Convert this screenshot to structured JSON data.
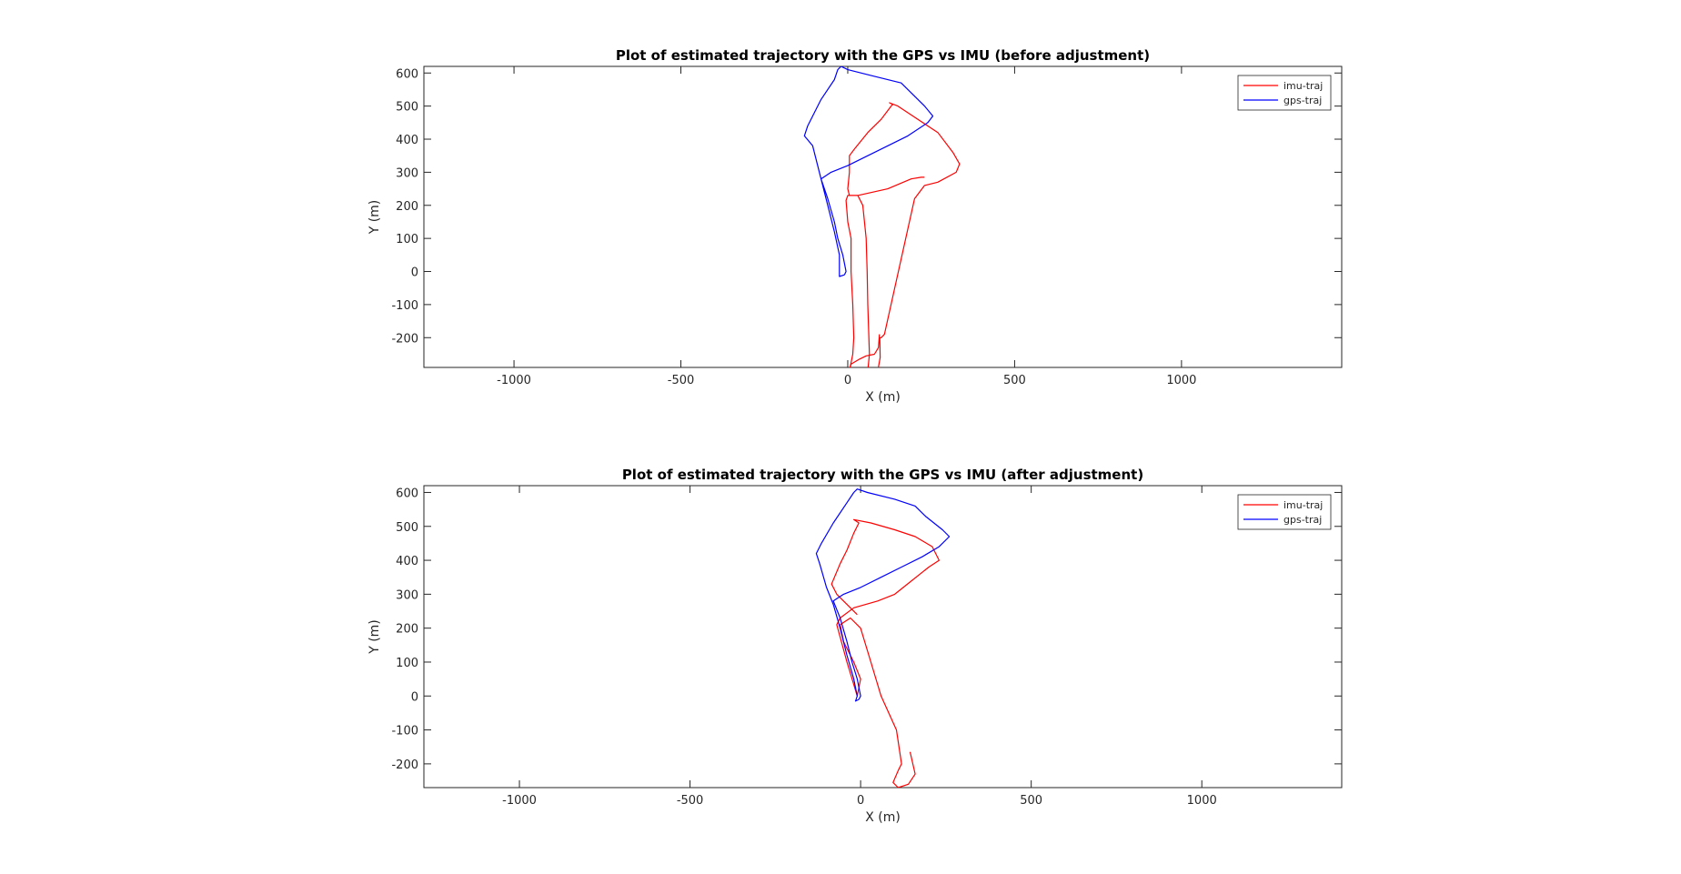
{
  "chart_data": [
    {
      "type": "line",
      "title": "Plot of estimated trajectory with the GPS vs IMU (before adjustment)",
      "xlabel": "X (m)",
      "ylabel": "Y (m)",
      "xlim": [
        -1270,
        1480
      ],
      "ylim": [
        -290,
        620
      ],
      "xticks": [
        -1000,
        -500,
        0,
        500,
        1000
      ],
      "yticks": [
        600,
        500,
        400,
        300,
        200,
        100,
        0,
        -100,
        -200
      ],
      "xtick_labels": [
        "-1000",
        "-500",
        "0",
        "500",
        "1000"
      ],
      "ytick_labels": [
        "600",
        "500",
        "400",
        "300",
        "200",
        "100",
        "0",
        "-100",
        "-200"
      ],
      "grid": false,
      "legend_position": "top-right",
      "series": [
        {
          "name": "imu-traj",
          "color": "#ff0000",
          "points": [
            [
              95,
              -190
            ],
            [
              92,
              -230
            ],
            [
              80,
              -250
            ],
            [
              55,
              -255
            ],
            [
              35,
              -265
            ],
            [
              10,
              -280
            ],
            [
              5,
              -300
            ],
            [
              20,
              -320
            ],
            [
              50,
              -325
            ],
            [
              60,
              -300
            ],
            [
              65,
              -250
            ],
            [
              60,
              -100
            ],
            [
              58,
              0
            ],
            [
              55,
              100
            ],
            [
              45,
              200
            ],
            [
              30,
              230
            ],
            [
              0,
              230
            ],
            [
              -5,
              215
            ],
            [
              0,
              150
            ],
            [
              10,
              100
            ],
            [
              10,
              0
            ],
            [
              15,
              -100
            ],
            [
              18,
              -200
            ],
            [
              15,
              -250
            ],
            [
              5,
              -300
            ],
            [
              50,
              -310
            ],
            [
              90,
              -300
            ],
            [
              97,
              -260
            ],
            [
              96,
              -200
            ],
            [
              100,
              -200
            ],
            [
              110,
              -190
            ],
            [
              200,
              220
            ],
            [
              230,
              260
            ],
            [
              270,
              270
            ],
            [
              325,
              300
            ],
            [
              335,
              325
            ],
            [
              315,
              360
            ],
            [
              270,
              420
            ],
            [
              240,
              440
            ],
            [
              150,
              500
            ],
            [
              125,
              510
            ],
            [
              135,
              505
            ],
            [
              130,
              500
            ],
            [
              100,
              460
            ],
            [
              60,
              420
            ],
            [
              20,
              370
            ],
            [
              5,
              350
            ],
            [
              5,
              300
            ],
            [
              0,
              250
            ],
            [
              5,
              230
            ],
            [
              30,
              230
            ],
            [
              120,
              250
            ],
            [
              190,
              280
            ],
            [
              220,
              285
            ],
            [
              230,
              285
            ]
          ]
        },
        {
          "name": "gps-traj",
          "color": "#0000ff",
          "points": [
            [
              -10,
              -10
            ],
            [
              -25,
              -15
            ],
            [
              -25,
              0
            ],
            [
              -25,
              50
            ],
            [
              -40,
              120
            ],
            [
              -60,
              200
            ],
            [
              -80,
              280
            ],
            [
              -105,
              380
            ],
            [
              -130,
              410
            ],
            [
              -120,
              440
            ],
            [
              -80,
              520
            ],
            [
              -40,
              580
            ],
            [
              -30,
              610
            ],
            [
              -20,
              620
            ],
            [
              0,
              610
            ],
            [
              80,
              590
            ],
            [
              160,
              570
            ],
            [
              190,
              540
            ],
            [
              230,
              500
            ],
            [
              255,
              470
            ],
            [
              240,
              450
            ],
            [
              180,
              410
            ],
            [
              120,
              380
            ],
            [
              60,
              350
            ],
            [
              0,
              320
            ],
            [
              -50,
              300
            ],
            [
              -80,
              280
            ],
            [
              -60,
              220
            ],
            [
              -40,
              150
            ],
            [
              -30,
              100
            ],
            [
              -15,
              50
            ],
            [
              -5,
              0
            ],
            [
              -10,
              -10
            ]
          ]
        }
      ]
    },
    {
      "type": "line",
      "title": "Plot of estimated trajectory with the GPS vs IMU (after adjustment)",
      "xlabel": "X (m)",
      "ylabel": "Y (m)",
      "xlim": [
        -1280,
        1410
      ],
      "ylim": [
        -270,
        620
      ],
      "xticks": [
        -1000,
        -500,
        0,
        500,
        1000
      ],
      "yticks": [
        600,
        500,
        400,
        300,
        200,
        100,
        0,
        -100,
        -200
      ],
      "xtick_labels": [
        "-1000",
        "-500",
        "0",
        "500",
        "1000"
      ],
      "ytick_labels": [
        "600",
        "500",
        "400",
        "300",
        "200",
        "100",
        "0",
        "-100",
        "-200"
      ],
      "grid": false,
      "legend_position": "top-right",
      "series": [
        {
          "name": "imu-traj",
          "color": "#ff0000",
          "points": [
            [
              145,
              -165
            ],
            [
              160,
              -230
            ],
            [
              140,
              -260
            ],
            [
              110,
              -270
            ],
            [
              95,
              -255
            ],
            [
              110,
              -220
            ],
            [
              120,
              -200
            ],
            [
              105,
              -100
            ],
            [
              60,
              0
            ],
            [
              30,
              100
            ],
            [
              0,
              200
            ],
            [
              -30,
              230
            ],
            [
              -60,
              210
            ],
            [
              -50,
              160
            ],
            [
              -20,
              100
            ],
            [
              0,
              50
            ],
            [
              -10,
              0
            ],
            [
              -40,
              100
            ],
            [
              -70,
              210
            ],
            [
              -60,
              230
            ],
            [
              -20,
              260
            ],
            [
              50,
              280
            ],
            [
              100,
              300
            ],
            [
              150,
              340
            ],
            [
              200,
              380
            ],
            [
              230,
              400
            ],
            [
              210,
              440
            ],
            [
              160,
              470
            ],
            [
              100,
              490
            ],
            [
              30,
              510
            ],
            [
              -20,
              520
            ],
            [
              -5,
              510
            ],
            [
              -20,
              480
            ],
            [
              -40,
              430
            ],
            [
              -60,
              390
            ],
            [
              -85,
              330
            ],
            [
              -70,
              300
            ],
            [
              -40,
              270
            ],
            [
              -10,
              240
            ]
          ]
        },
        {
          "name": "gps-traj",
          "color": "#0000ff",
          "points": [
            [
              -5,
              -10
            ],
            [
              -15,
              -15
            ],
            [
              -10,
              0
            ],
            [
              -20,
              50
            ],
            [
              -40,
              120
            ],
            [
              -60,
              200
            ],
            [
              -80,
              270
            ],
            [
              -100,
              320
            ],
            [
              -120,
              390
            ],
            [
              -130,
              420
            ],
            [
              -115,
              450
            ],
            [
              -80,
              510
            ],
            [
              -40,
              570
            ],
            [
              -20,
              600
            ],
            [
              -10,
              610
            ],
            [
              20,
              600
            ],
            [
              100,
              580
            ],
            [
              160,
              560
            ],
            [
              190,
              530
            ],
            [
              240,
              490
            ],
            [
              260,
              470
            ],
            [
              230,
              440
            ],
            [
              180,
              410
            ],
            [
              120,
              380
            ],
            [
              60,
              350
            ],
            [
              0,
              320
            ],
            [
              -50,
              300
            ],
            [
              -80,
              280
            ],
            [
              -60,
              230
            ],
            [
              -40,
              160
            ],
            [
              -25,
              100
            ],
            [
              -10,
              50
            ],
            [
              0,
              0
            ],
            [
              -5,
              -10
            ]
          ]
        }
      ]
    }
  ]
}
